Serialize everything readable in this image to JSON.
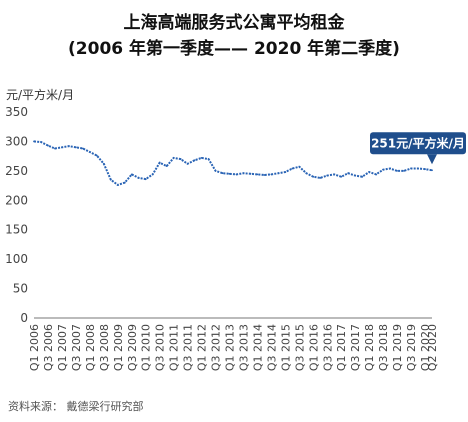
{
  "title_line1": "上海高端服务式公寓平均租金",
  "title_line2": "(2006 年第一季度—— 2020 年第二季度)",
  "y_unit": "元/平方米/月",
  "source": "资料来源： 戴德梁行研究部",
  "colors": {
    "line": "#2a64b5",
    "callout": "#1f4e8c",
    "axis": "#777777"
  },
  "chart_data": {
    "type": "line",
    "title": "上海高端服务式公寓平均租金 (2006 年第一季度—— 2020 年第二季度)",
    "ylabel": "元/平方米/月",
    "ylim": [
      0,
      350
    ],
    "yticks": [
      0,
      50,
      100,
      150,
      200,
      250,
      300,
      350
    ],
    "grid": false,
    "x": [
      "Q1 2006",
      "Q2 2006",
      "Q3 2006",
      "Q4 2006",
      "Q1 2007",
      "Q2 2007",
      "Q3 2007",
      "Q4 2007",
      "Q1 2008",
      "Q2 2008",
      "Q3 2008",
      "Q4 2008",
      "Q1 2009",
      "Q2 2009",
      "Q3 2009",
      "Q4 2009",
      "Q1 2010",
      "Q2 2010",
      "Q3 2010",
      "Q4 2010",
      "Q1 2011",
      "Q2 2011",
      "Q3 2011",
      "Q4 2011",
      "Q1 2012",
      "Q2 2012",
      "Q3 2012",
      "Q4 2012",
      "Q1 2013",
      "Q2 2013",
      "Q3 2013",
      "Q4 2013",
      "Q1 2014",
      "Q2 2014",
      "Q3 2014",
      "Q4 2014",
      "Q1 2015",
      "Q2 2015",
      "Q3 2015",
      "Q4 2015",
      "Q1 2016",
      "Q2 2016",
      "Q3 2016",
      "Q4 2016",
      "Q1 2017",
      "Q2 2017",
      "Q3 2017",
      "Q4 2017",
      "Q1 2018",
      "Q2 2018",
      "Q3 2018",
      "Q4 2018",
      "Q1 2019",
      "Q2 2019",
      "Q3 2019",
      "Q4 2019",
      "Q1 2020",
      "Q2 2020"
    ],
    "xtick_labels": [
      "Q1 2006",
      "Q3 2006",
      "Q1 2007",
      "Q3 2007",
      "Q1 2008",
      "Q3 2008",
      "Q1 2009",
      "Q3 2009",
      "Q1 2010",
      "Q3 2010",
      "Q1 2011",
      "Q3 2011",
      "Q1 2012",
      "Q3 2012",
      "Q1 2013",
      "Q3 2013",
      "Q1 2014",
      "Q3 2014",
      "Q1 2015",
      "Q3 2015",
      "Q1 2016",
      "Q3 2016",
      "Q1 2017",
      "Q3 2017",
      "Q1 2018",
      "Q3 2018",
      "Q1 2019",
      "Q3 2019",
      "Q1 2020",
      "Q2 2020"
    ],
    "series": [
      {
        "values": [
          300,
          299,
          293,
          288,
          290,
          292,
          290,
          288,
          282,
          276,
          262,
          235,
          226,
          230,
          244,
          238,
          236,
          244,
          264,
          258,
          272,
          270,
          262,
          268,
          272,
          270,
          250,
          246,
          245,
          244,
          246,
          245,
          244,
          243,
          244,
          246,
          248,
          254,
          257,
          246,
          240,
          238,
          242,
          244,
          240,
          246,
          242,
          240,
          248,
          244,
          252,
          254,
          250,
          250,
          254,
          254,
          253,
          251
        ]
      }
    ],
    "annotation": {
      "text": "251元/平方米/月",
      "at": "Q2 2020",
      "value": 251
    }
  }
}
